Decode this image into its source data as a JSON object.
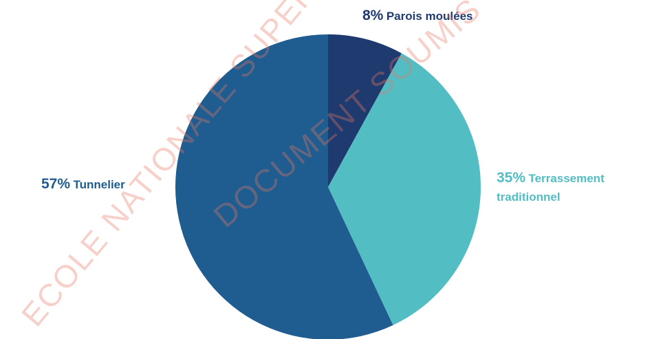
{
  "chart_data": {
    "type": "pie",
    "categories": [
      "Parois moulées",
      "Terrassement traditionnel",
      "Tunnelier"
    ],
    "values": [
      8,
      35,
      57
    ],
    "value_labels": [
      "8%",
      "35%",
      "57%"
    ],
    "colors": [
      "#1f3a6e",
      "#52bec4",
      "#1f5c8f"
    ]
  },
  "watermarks": [
    "ECOLE NATIONALE SUPERIEURE DE",
    "DOCUMENT SOUMIS"
  ]
}
